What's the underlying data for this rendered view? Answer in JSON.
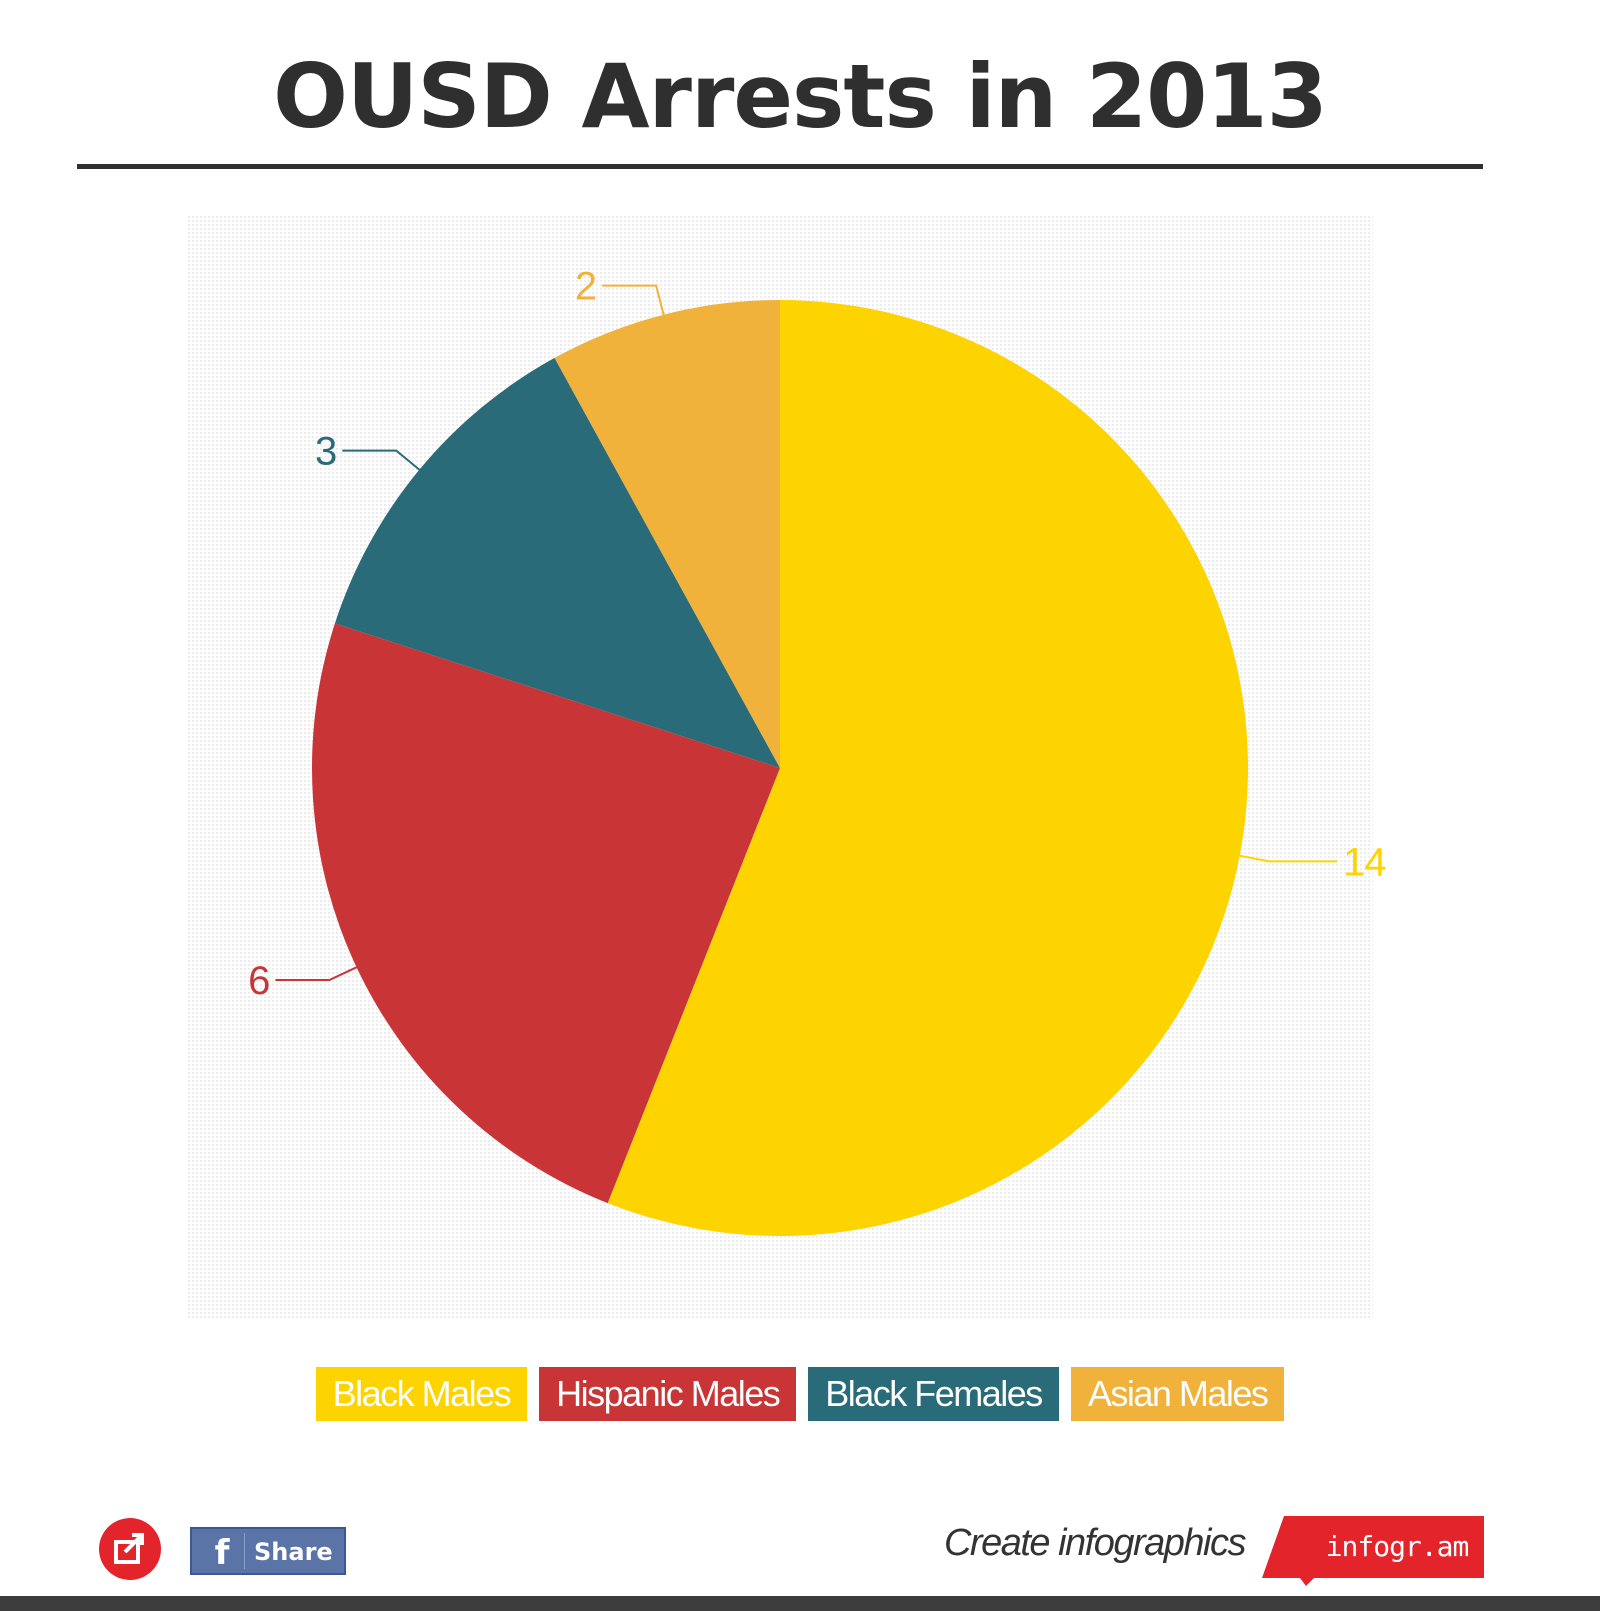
{
  "chart_data": {
    "type": "pie",
    "title": "OUSD Arrests in 2013",
    "categories": [
      "Black Males",
      "Hispanic Males",
      "Black Females",
      "Asian Males"
    ],
    "values": [
      14,
      6,
      3,
      2
    ],
    "colors": [
      "#fdd300",
      "#c93536",
      "#2a6b7a",
      "#f0b23a"
    ],
    "start_angle_deg": 0,
    "direction": "clockwise",
    "legend_position": "bottom",
    "data_labels": "outside with leader lines"
  },
  "footer": {
    "share_icon": "share-icon",
    "facebook_label": "Share",
    "facebook_icon": "f",
    "create_text": "Create infographics",
    "brand_label": "infogr.am",
    "brand_color": "#e3242b"
  }
}
